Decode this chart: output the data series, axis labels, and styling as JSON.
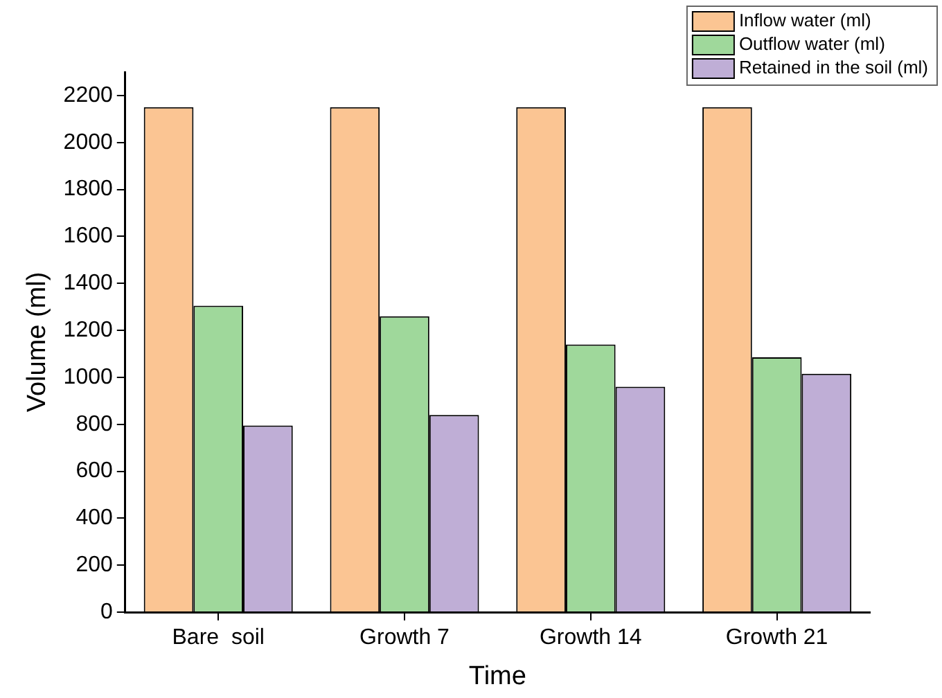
{
  "chart_data": {
    "type": "bar",
    "xlabel": "Time",
    "ylabel": "Volume (ml)",
    "categories": [
      "Bare  soil",
      "Growth 7",
      "Growth 14",
      "Growth 21"
    ],
    "series": [
      {
        "name": "Inflow water (ml)",
        "color": "#fbc593",
        "values": [
          2150,
          2150,
          2150,
          2150
        ]
      },
      {
        "name": "Outflow water (ml)",
        "color": "#9fd89b",
        "values": [
          1305,
          1260,
          1140,
          1085
        ]
      },
      {
        "name": "Retained in the soil (ml)",
        "color": "#bfaed6",
        "values": [
          795,
          840,
          960,
          1015
        ]
      }
    ],
    "ylim": [
      0,
      2300
    ],
    "yticks": [
      0,
      200,
      400,
      600,
      800,
      1000,
      1200,
      1400,
      1600,
      1800,
      2000,
      2200
    ],
    "grid": false,
    "legend": "top right"
  }
}
